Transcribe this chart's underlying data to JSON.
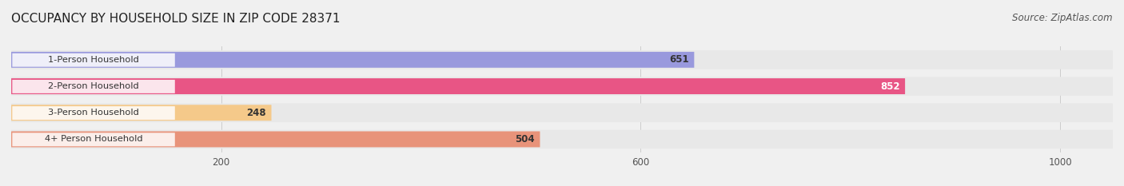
{
  "title": "OCCUPANCY BY HOUSEHOLD SIZE IN ZIP CODE 28371",
  "source": "Source: ZipAtlas.com",
  "categories": [
    "1-Person Household",
    "2-Person Household",
    "3-Person Household",
    "4+ Person Household"
  ],
  "values": [
    651,
    852,
    248,
    504
  ],
  "bar_colors": [
    "#9999dd",
    "#e85585",
    "#f5c98a",
    "#e8937a"
  ],
  "bar_label_colors": [
    "#333333",
    "#ffffff",
    "#333333",
    "#333333"
  ],
  "xlim": [
    0,
    1050
  ],
  "xticks": [
    200,
    600,
    1000
  ],
  "background_color": "#f0f0f0",
  "bar_bg_color": "#e8e8e8",
  "label_bg_color": "#ffffff",
  "title_fontsize": 11,
  "source_fontsize": 8.5,
  "bar_height": 0.55,
  "figsize": [
    14.06,
    2.33
  ],
  "dpi": 100
}
